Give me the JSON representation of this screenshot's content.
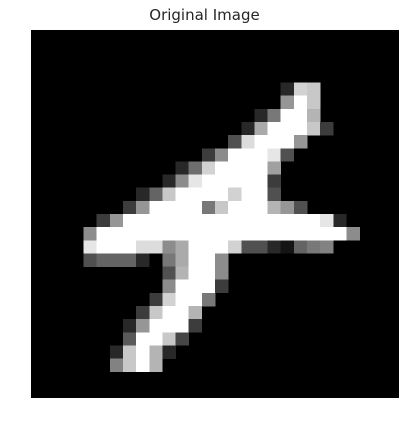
{
  "title": "Original Image",
  "image": {
    "description_icon": "grayscale-digit-image",
    "background_color": "#000000",
    "foreground_color": "#ffffff",
    "grid_rows": 28,
    "grid_cols": 28
  }
}
